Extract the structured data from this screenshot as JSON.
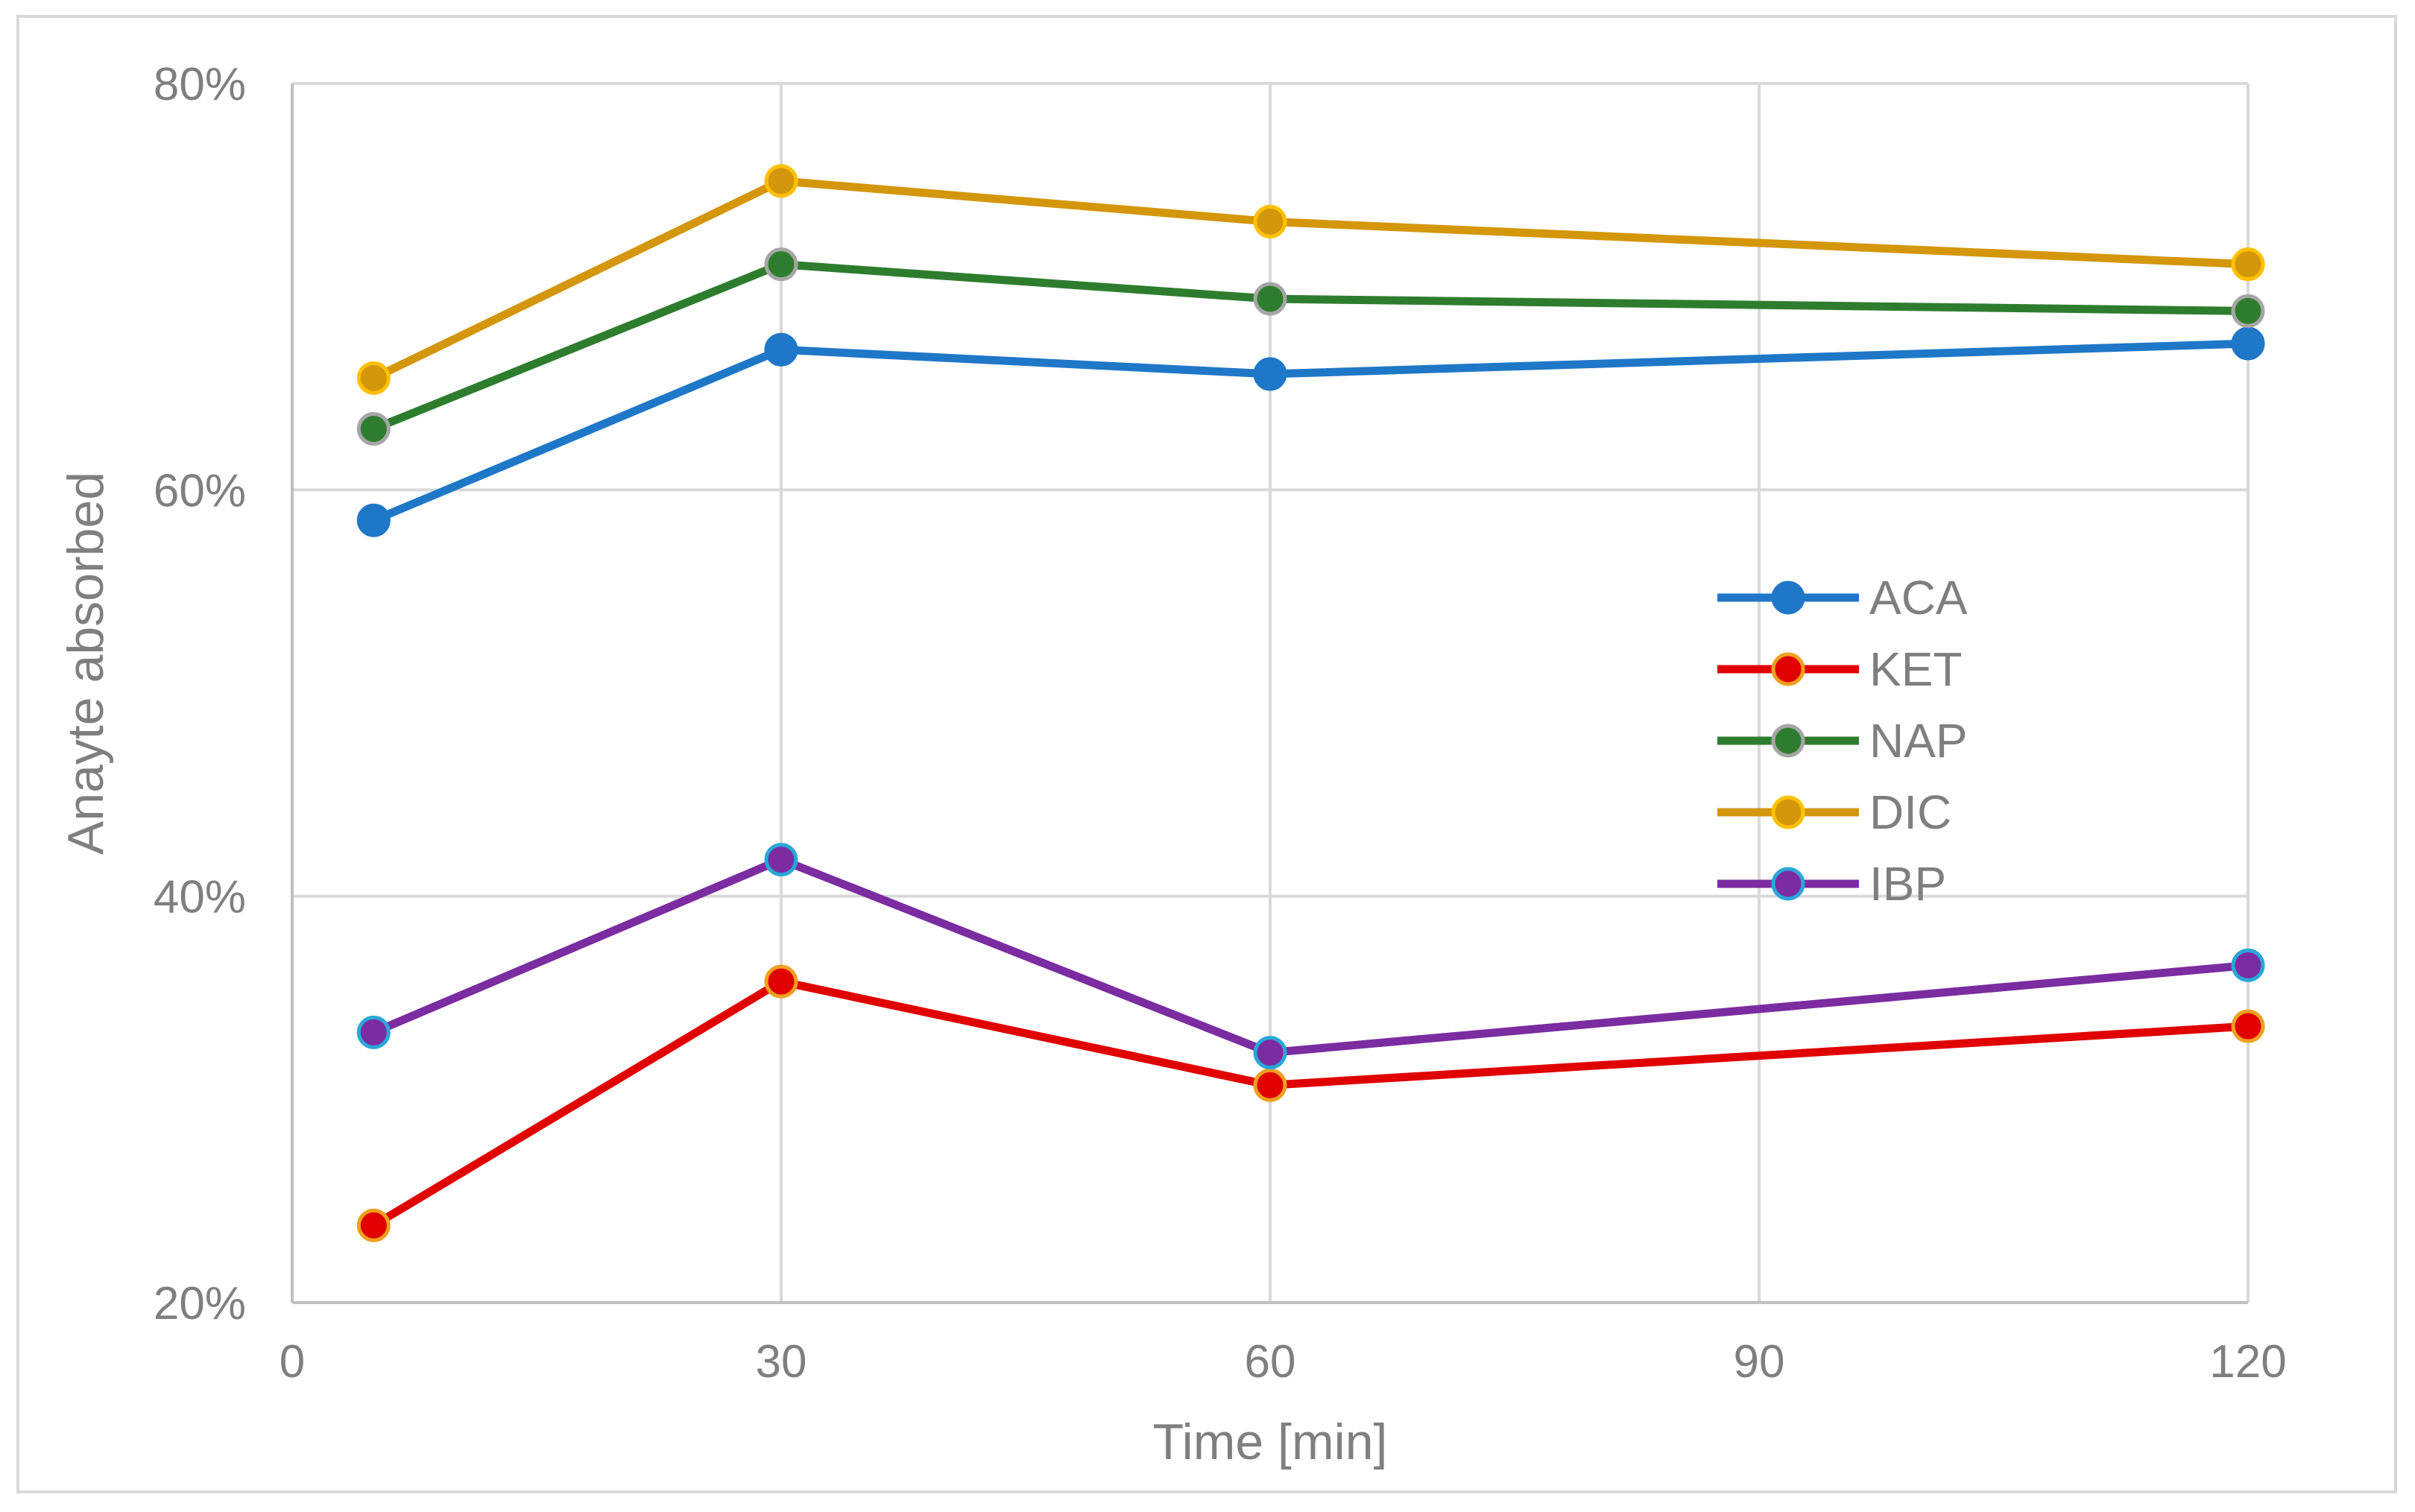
{
  "chart_data": {
    "type": "line",
    "xlabel": "Time [min]",
    "ylabel": "Anayte absorbed",
    "xlim": [
      0,
      120
    ],
    "ylim": [
      0.2,
      0.8
    ],
    "x_ticks": [
      0,
      30,
      60,
      90,
      120
    ],
    "x_tick_labels": [
      "0",
      "30",
      "60",
      "90",
      "120"
    ],
    "y_ticks": [
      0.2,
      0.4,
      0.6,
      0.8
    ],
    "y_tick_labels": [
      "20%",
      "40%",
      "60%",
      "80%"
    ],
    "grid": true,
    "legend_position": "right, inside plot",
    "x": [
      5,
      30,
      60,
      120
    ],
    "series": [
      {
        "name": "ACA",
        "values": [
          0.585,
          0.669,
          0.657,
          0.672
        ],
        "line_color": "#1f77c8",
        "marker_fill": "#1f77c8",
        "marker_edge": "#1f77c8"
      },
      {
        "name": "KET",
        "values": [
          0.238,
          0.358,
          0.307,
          0.336
        ],
        "line_color": "#e00000",
        "marker_fill": "#e00000",
        "marker_edge": "#f0a020"
      },
      {
        "name": "NAP",
        "values": [
          0.63,
          0.711,
          0.694,
          0.688
        ],
        "line_color": "#2e7d2e",
        "marker_fill": "#2e7d2e",
        "marker_edge": "#a6a6a6"
      },
      {
        "name": "DIC",
        "values": [
          0.655,
          0.752,
          0.732,
          0.711
        ],
        "line_color": "#d4960a",
        "marker_fill": "#d4960a",
        "marker_edge": "#ffc000"
      },
      {
        "name": "IBP",
        "values": [
          0.333,
          0.418,
          0.323,
          0.366
        ],
        "line_color": "#7b2ca0",
        "marker_fill": "#7b2ca0",
        "marker_edge": "#2aa7d8"
      }
    ]
  }
}
